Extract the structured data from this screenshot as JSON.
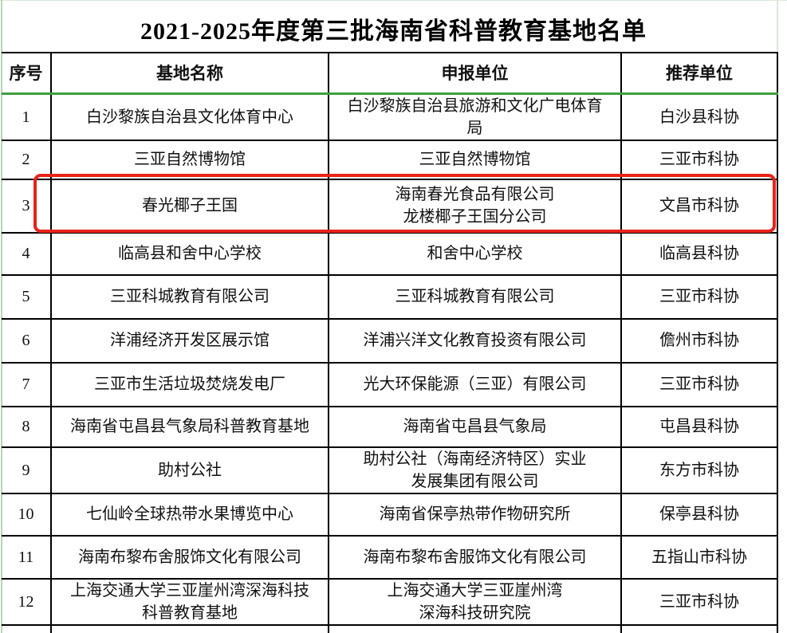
{
  "page": {
    "title": "2021-2025年度第三批海南省科普教育基地名单"
  },
  "colors": {
    "grid_green": "#3f9e3f",
    "edge_green": "#b7d3b7",
    "edge_green_light": "#d7e8d7",
    "highlight_red": "#e8231a",
    "table_border": "#000000",
    "text": "#111111"
  },
  "table": {
    "headers": [
      "序号",
      "基地名称",
      "申报单位",
      "推荐单位"
    ],
    "highlighted_row_no": "3",
    "rows": [
      {
        "no": "1",
        "name": "白沙黎族自治县文化体育中心",
        "applicant": "白沙黎族自治县旅游和文化广电体育\n局",
        "recommender": "白沙县科协",
        "highlighted": false
      },
      {
        "no": "2",
        "name": "三亚自然博物馆",
        "applicant": "三亚自然博物馆",
        "recommender": "三亚市科协",
        "highlighted": false
      },
      {
        "no": "3",
        "name": "春光椰子王国",
        "applicant": "海南春光食品有限公司\n龙楼椰子王国分公司",
        "recommender": "文昌市科协",
        "highlighted": true
      },
      {
        "no": "4",
        "name": "临高县和舍中心学校",
        "applicant": "和舍中心学校",
        "recommender": "临高县科协",
        "highlighted": false
      },
      {
        "no": "5",
        "name": "三亚科城教育有限公司",
        "applicant": "三亚科城教育有限公司",
        "recommender": "三亚市科协",
        "highlighted": false
      },
      {
        "no": "6",
        "name": "洋浦经济开发区展示馆",
        "applicant": "洋浦兴洋文化教育投资有限公司",
        "recommender": "儋州市科协",
        "highlighted": false
      },
      {
        "no": "7",
        "name": "三亚市生活垃圾焚烧发电厂",
        "applicant": "光大环保能源（三亚）有限公司",
        "recommender": "三亚市科协",
        "highlighted": false
      },
      {
        "no": "8",
        "name": "海南省屯昌县气象局科普教育基地",
        "applicant": "海南省屯昌县气象局",
        "recommender": "屯昌县科协",
        "highlighted": false
      },
      {
        "no": "9",
        "name": "助村公社",
        "applicant": "助村公社（海南经济特区）实业\n发展集团有限公司",
        "recommender": "东方市科协",
        "highlighted": false
      },
      {
        "no": "10",
        "name": "七仙岭全球热带水果博览中心",
        "applicant": "海南省保亭热带作物研究所",
        "recommender": "保亭县科协",
        "highlighted": false
      },
      {
        "no": "11",
        "name": "海南布黎布舍服饰文化有限公司",
        "applicant": "海南布黎布舍服饰文化有限公司",
        "recommender": "五指山市科协",
        "highlighted": false
      },
      {
        "no": "12",
        "name": "上海交通大学三亚崖州湾深海科技\n科普教育基地",
        "applicant": "上海交通大学三亚崖州湾\n深海科技研究院",
        "recommender": "三亚市科协",
        "highlighted": false
      }
    ]
  }
}
